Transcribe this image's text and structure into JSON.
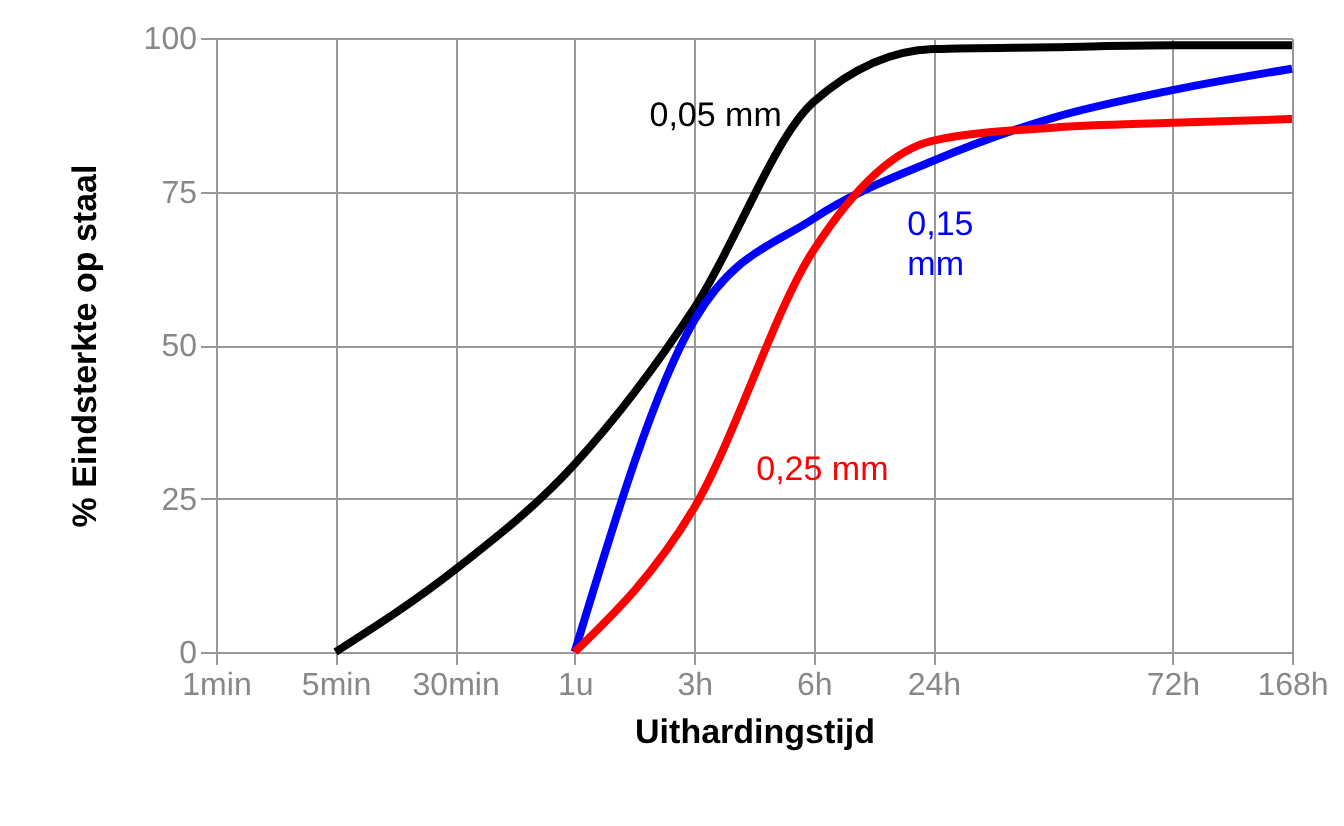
{
  "chart_data": {
    "type": "line",
    "xlabel": "Uithardingstijd",
    "ylabel": "% Eindsterkte op staal",
    "categories": [
      "1min",
      "5min",
      "30min",
      "1u",
      "3h",
      "6h",
      "24h",
      null,
      "72h",
      "168h"
    ],
    "ylim": [
      0,
      100
    ],
    "yticks": [
      0,
      25,
      50,
      75,
      100
    ],
    "grid": true,
    "line_style": "solid",
    "series": [
      {
        "name": "0,05 mm",
        "color": "#000000",
        "values": [
          null,
          0,
          13.4,
          30.6,
          56,
          89.6,
          98.2,
          98.5,
          98.8,
          98.8
        ]
      },
      {
        "name": "0,15 mm",
        "color": "#0000ff",
        "values": [
          null,
          null,
          null,
          0,
          54,
          70.6,
          80,
          87,
          91.5,
          95
        ]
      },
      {
        "name": "0,25 mm",
        "color": "#ff0000",
        "values": [
          null,
          null,
          null,
          0,
          23.5,
          65.5,
          83.3,
          85.4,
          86.2,
          86.8
        ]
      }
    ]
  }
}
